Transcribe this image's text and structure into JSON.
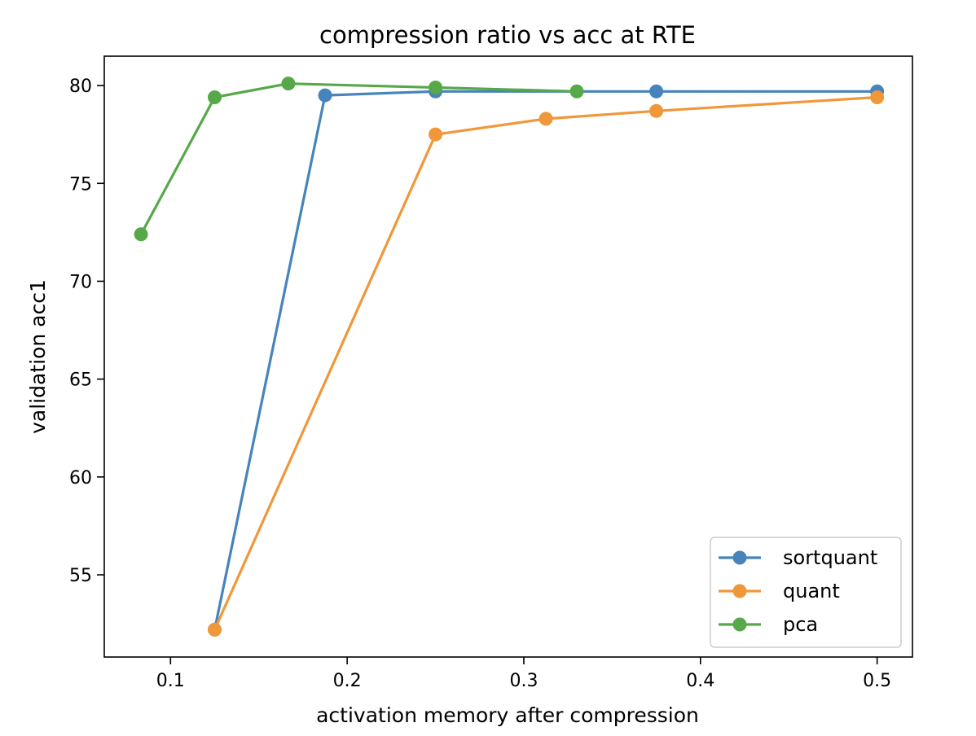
{
  "chart_data": {
    "type": "line",
    "title": "compression ratio vs acc at RTE",
    "xlabel": "activation memory after compression",
    "ylabel": "validation acc1",
    "xlim": [
      0.0625,
      0.52
    ],
    "ylim": [
      50.8,
      81.5
    ],
    "xticks": [
      0.1,
      0.2,
      0.3,
      0.4,
      0.5
    ],
    "xtick_labels": [
      "0.1",
      "0.2",
      "0.3",
      "0.4",
      "0.5"
    ],
    "yticks": [
      55,
      60,
      65,
      70,
      75,
      80
    ],
    "ytick_labels": [
      "55",
      "60",
      "65",
      "70",
      "75",
      "80"
    ],
    "grid": false,
    "legend_position": "lower-right",
    "series": [
      {
        "name": "sortquant",
        "color": "#4684bb",
        "x": [
          0.125,
          0.1875,
          0.25,
          0.375,
          0.5
        ],
        "y": [
          52.2,
          79.5,
          79.7,
          79.7,
          79.7
        ]
      },
      {
        "name": "quant",
        "color": "#f0973a",
        "x": [
          0.125,
          0.25,
          0.3125,
          0.375,
          0.5
        ],
        "y": [
          52.2,
          77.5,
          78.3,
          78.7,
          79.4
        ]
      },
      {
        "name": "pca",
        "color": "#56a849",
        "x": [
          0.0833,
          0.125,
          0.1667,
          0.25,
          0.33
        ],
        "y": [
          72.4,
          79.4,
          80.1,
          79.9,
          79.7
        ]
      }
    ]
  }
}
